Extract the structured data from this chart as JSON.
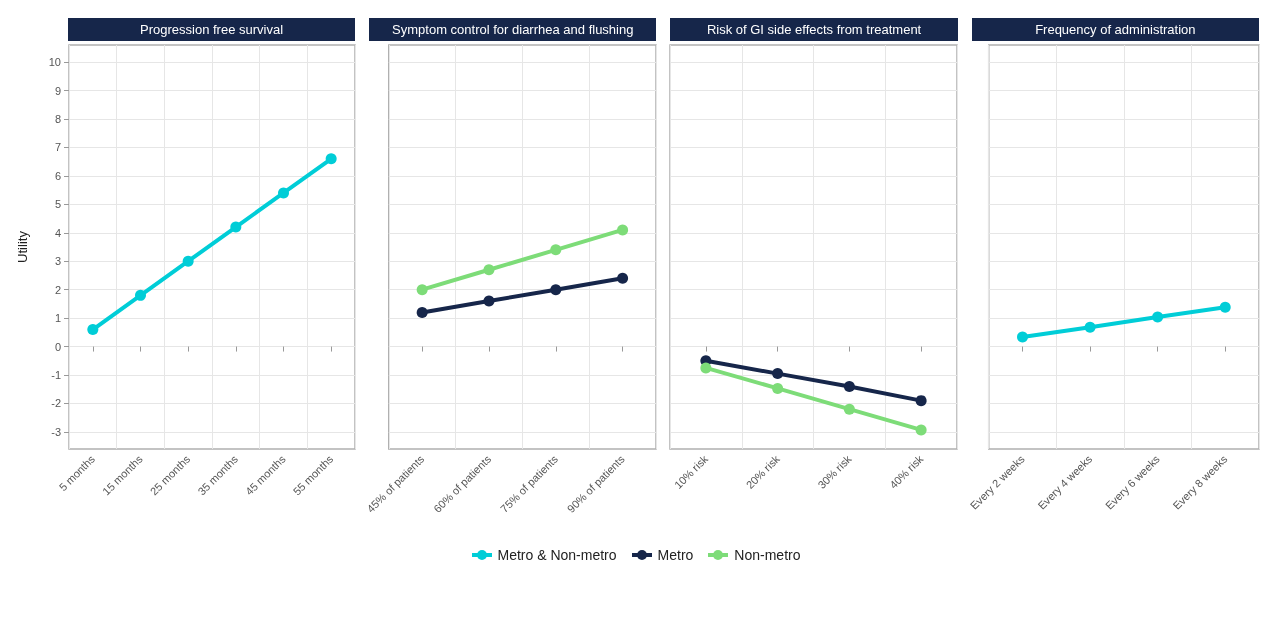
{
  "chart_data": [
    {
      "type": "line",
      "title": "Progression free survival",
      "ylabel": "Utility",
      "categories": [
        "5 months",
        "15 months",
        "25 months",
        "35 months",
        "45 months",
        "55 months"
      ],
      "series": [
        {
          "name": "Metro & Non-metro",
          "color": "#00cdd7",
          "values": [
            0.6,
            1.8,
            3.0,
            4.2,
            5.4,
            6.6
          ]
        }
      ],
      "ylim": [
        -3.6,
        10.6
      ],
      "yticks": [
        -3,
        -2,
        -1,
        0,
        1,
        2,
        3,
        4,
        5,
        6,
        7,
        8,
        9,
        10
      ],
      "grid": true,
      "marker": "circle",
      "legend": "bottom"
    },
    {
      "type": "line",
      "title": "Symptom control for diarrhea and flushing",
      "categories": [
        "45% of patients",
        "60% of patients",
        "75% of patients",
        "90% of patients"
      ],
      "series": [
        {
          "name": "Metro",
          "color": "#16264a",
          "values": [
            1.2,
            1.6,
            2.0,
            2.4
          ]
        },
        {
          "name": "Non-metro",
          "color": "#7ddc78",
          "values": [
            2.0,
            2.7,
            3.4,
            4.1
          ]
        }
      ],
      "ylim": [
        -3.6,
        10.6
      ],
      "yticks": [
        -3,
        -2,
        -1,
        0,
        1,
        2,
        3,
        4,
        5,
        6,
        7,
        8,
        9,
        10
      ],
      "tick_labels": "x",
      "grid": true,
      "marker": "circle",
      "legend": "bottom"
    },
    {
      "type": "line",
      "title": "Risk of GI side effects from treatment",
      "categories": [
        "10% risk",
        "20% risk",
        "30% risk",
        "40% risk"
      ],
      "series": [
        {
          "name": "Metro",
          "color": "#16264a",
          "values": [
            -0.5,
            -0.95,
            -1.4,
            -1.9
          ]
        },
        {
          "name": "Non-metro",
          "color": "#7ddc78",
          "values": [
            -0.75,
            -1.47,
            -2.2,
            -2.93
          ]
        }
      ],
      "ylim": [
        -3.6,
        10.6
      ],
      "yticks": [
        -3,
        -2,
        -1,
        0,
        1,
        2,
        3,
        4,
        5,
        6,
        7,
        8,
        9,
        10
      ],
      "tick_labels": "x",
      "grid": true,
      "marker": "circle",
      "legend": "bottom"
    },
    {
      "type": "line",
      "title": "Frequency of administration",
      "categories": [
        "Every 2 weeks",
        "Every 4 weeks",
        "Every 6 weeks",
        "Every 8 weeks"
      ],
      "series": [
        {
          "name": "Metro & Non-metro",
          "color": "#00cdd7",
          "values": [
            0.34,
            0.68,
            1.04,
            1.38
          ]
        }
      ],
      "ylim": [
        -3.6,
        10.6
      ],
      "yticks": [
        -3,
        -2,
        -1,
        0,
        1,
        2,
        3,
        4,
        5,
        6,
        7,
        8,
        9,
        10
      ],
      "tick_labels": "x",
      "grid": true,
      "marker": "circle",
      "legend": "bottom"
    }
  ]
}
